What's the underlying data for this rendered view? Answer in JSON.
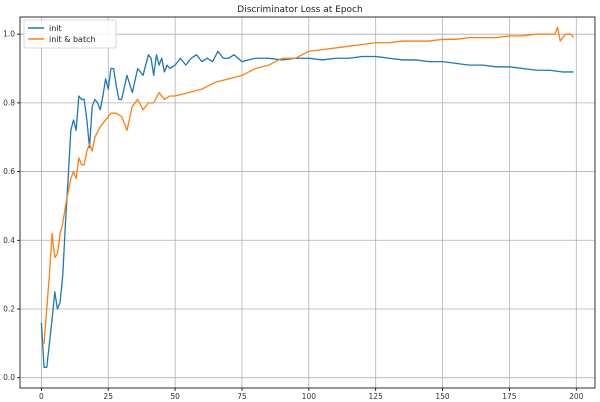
{
  "chart_data": {
    "type": "line",
    "title": "Discriminator Loss at Epoch",
    "xlabel": "",
    "ylabel": "",
    "xlim": [
      -8,
      207
    ],
    "ylim": [
      -0.03,
      1.05
    ],
    "xticks": [
      0,
      25,
      50,
      75,
      100,
      125,
      150,
      175,
      200
    ],
    "yticks": [
      0.0,
      0.2,
      0.4,
      0.6,
      0.8,
      1.0
    ],
    "grid": true,
    "legend_position": "top-left",
    "series": [
      {
        "name": "init",
        "color": "#1f77b4",
        "x": [
          0,
          1,
          2,
          3,
          4,
          5,
          6,
          7,
          8,
          9,
          10,
          11,
          12,
          13,
          14,
          15,
          16,
          17,
          18,
          19,
          20,
          21,
          22,
          23,
          24,
          25,
          26,
          27,
          28,
          29,
          30,
          32,
          34,
          36,
          38,
          40,
          41,
          42,
          43,
          44,
          45,
          46,
          47,
          48,
          50,
          52,
          54,
          56,
          58,
          60,
          62,
          64,
          66,
          68,
          70,
          72,
          75,
          80,
          85,
          90,
          95,
          100,
          105,
          110,
          115,
          120,
          125,
          130,
          135,
          140,
          145,
          150,
          155,
          160,
          165,
          170,
          175,
          180,
          185,
          190,
          195,
          199
        ],
        "y": [
          0.16,
          0.03,
          0.03,
          0.1,
          0.17,
          0.25,
          0.2,
          0.22,
          0.3,
          0.45,
          0.58,
          0.72,
          0.75,
          0.72,
          0.82,
          0.81,
          0.81,
          0.75,
          0.67,
          0.79,
          0.81,
          0.8,
          0.78,
          0.82,
          0.87,
          0.84,
          0.9,
          0.9,
          0.85,
          0.81,
          0.81,
          0.88,
          0.83,
          0.9,
          0.88,
          0.94,
          0.93,
          0.88,
          0.94,
          0.91,
          0.93,
          0.89,
          0.91,
          0.9,
          0.91,
          0.93,
          0.91,
          0.93,
          0.94,
          0.92,
          0.93,
          0.92,
          0.95,
          0.93,
          0.93,
          0.94,
          0.92,
          0.93,
          0.93,
          0.925,
          0.93,
          0.93,
          0.925,
          0.93,
          0.93,
          0.935,
          0.935,
          0.93,
          0.925,
          0.925,
          0.92,
          0.92,
          0.915,
          0.91,
          0.91,
          0.905,
          0.905,
          0.9,
          0.895,
          0.895,
          0.89,
          0.89
        ]
      },
      {
        "name": "init & batch",
        "color": "#ff7f0e",
        "x": [
          0,
          1,
          2,
          3,
          4,
          5,
          6,
          7,
          8,
          9,
          10,
          11,
          12,
          13,
          14,
          15,
          16,
          17,
          18,
          19,
          20,
          22,
          24,
          26,
          28,
          30,
          32,
          34,
          36,
          38,
          40,
          42,
          44,
          46,
          48,
          50,
          55,
          60,
          65,
          70,
          75,
          80,
          85,
          90,
          95,
          100,
          105,
          110,
          115,
          120,
          125,
          130,
          135,
          140,
          145,
          150,
          155,
          160,
          165,
          170,
          175,
          180,
          185,
          190,
          192,
          193,
          194,
          196,
          198,
          199
        ],
        "y": [
          0.1,
          0.1,
          0.2,
          0.3,
          0.42,
          0.35,
          0.36,
          0.42,
          0.45,
          0.5,
          0.54,
          0.58,
          0.6,
          0.58,
          0.64,
          0.62,
          0.62,
          0.66,
          0.68,
          0.66,
          0.7,
          0.73,
          0.75,
          0.77,
          0.77,
          0.76,
          0.72,
          0.79,
          0.81,
          0.78,
          0.8,
          0.8,
          0.83,
          0.81,
          0.82,
          0.82,
          0.83,
          0.84,
          0.86,
          0.87,
          0.88,
          0.9,
          0.91,
          0.93,
          0.93,
          0.95,
          0.955,
          0.96,
          0.965,
          0.97,
          0.975,
          0.975,
          0.98,
          0.98,
          0.98,
          0.985,
          0.985,
          0.99,
          0.99,
          0.99,
          0.995,
          0.995,
          1.0,
          1.0,
          1.0,
          1.02,
          0.98,
          1.0,
          1.0,
          0.99
        ]
      }
    ]
  }
}
